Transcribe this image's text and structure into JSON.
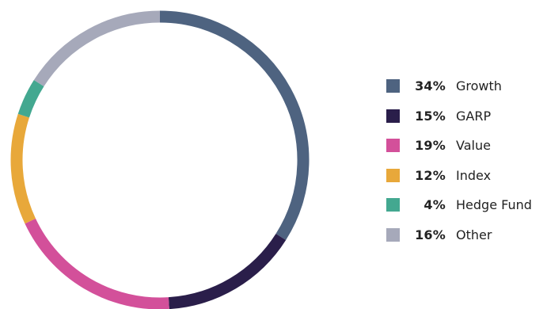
{
  "chart_data": {
    "type": "pie",
    "style": "donut-ring",
    "slices": [
      {
        "label": "Growth",
        "percent_text": "34%",
        "value": 34,
        "color": "#4e6380"
      },
      {
        "label": "GARP",
        "percent_text": "15%",
        "value": 15,
        "color": "#2a1e4a"
      },
      {
        "label": "Value",
        "percent_text": "19%",
        "value": 19,
        "color": "#d3509a"
      },
      {
        "label": "Index",
        "percent_text": "12%",
        "value": 12,
        "color": "#e8a83a"
      },
      {
        "label": "Hedge Fund",
        "percent_text": "4%",
        "value": 4,
        "color": "#43a890"
      },
      {
        "label": "Other",
        "percent_text": "16%",
        "value": 16,
        "color": "#a6a9ba"
      }
    ],
    "legend_position": "right"
  }
}
